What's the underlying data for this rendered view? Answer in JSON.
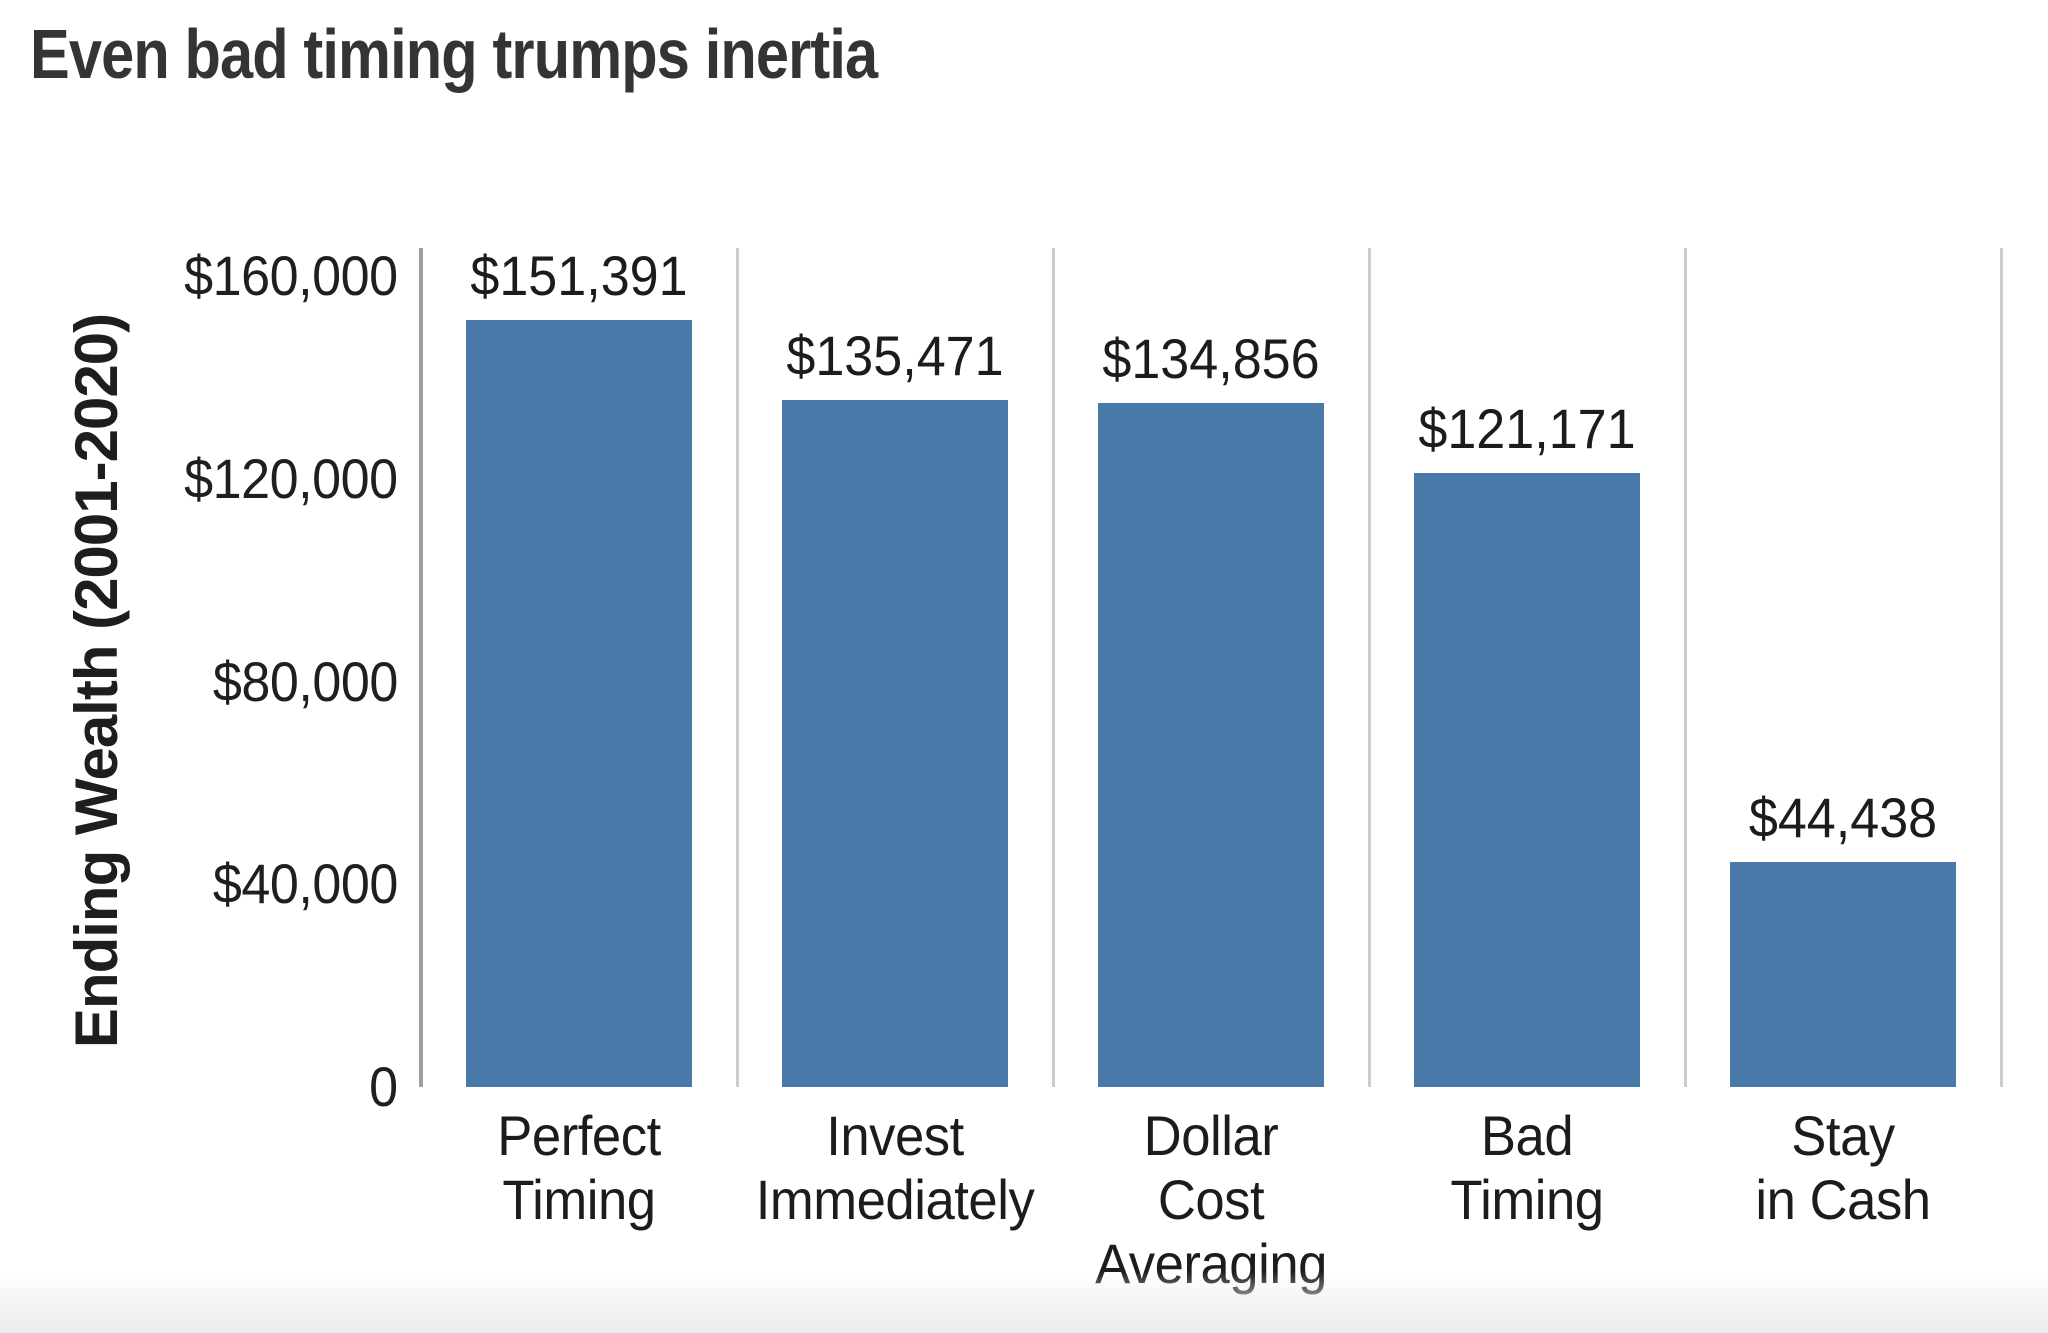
{
  "title": "Even bad timing trumps inertia",
  "chart_data": {
    "type": "bar",
    "title": "Even bad timing trumps inertia",
    "ylabel": "Ending Wealth (2001-2020)",
    "xlabel": "",
    "categories": [
      "Perfect\nTiming",
      "Invest\nImmediately",
      "Dollar\nCost\nAveraging",
      "Bad\nTiming",
      "Stay\nin Cash"
    ],
    "values": [
      151391,
      135471,
      134856,
      121171,
      44438
    ],
    "value_labels": [
      "$151,391",
      "$135,471",
      "$134,856",
      "$121,171",
      "$44,438"
    ],
    "yticks": [
      {
        "value": 160000,
        "label": "$160,000"
      },
      {
        "value": 120000,
        "label": "$120,000"
      },
      {
        "value": 80000,
        "label": "$80,000"
      },
      {
        "value": 40000,
        "label": "$40,000"
      },
      {
        "value": 0,
        "label": "0"
      }
    ],
    "ylim": [
      0,
      160000
    ],
    "legend": "none",
    "grid": "vertical category separators only, no horizontal gridlines",
    "colors": {
      "bar": "#4879a9",
      "axis_line": "#99a1a7",
      "grid_line": "#c9cdd1",
      "title_text": "#343434",
      "label_text": "#1c1c1c"
    }
  }
}
